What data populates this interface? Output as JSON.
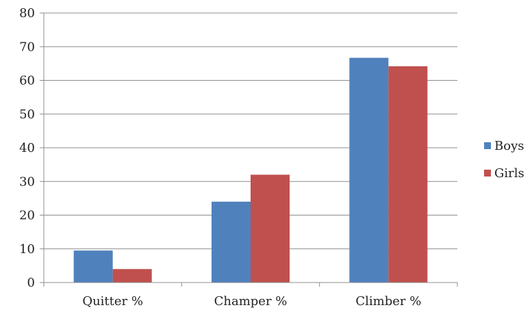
{
  "chart_data": {
    "type": "bar",
    "title": "",
    "xlabel": "",
    "ylabel": "",
    "categories": [
      "Quitter %",
      "Champer %",
      "Climber %"
    ],
    "series": [
      {
        "name": "Boys",
        "color": "#4f81bd",
        "values": [
          9.5,
          24,
          66.7
        ]
      },
      {
        "name": "Girls",
        "color": "#c0504d",
        "values": [
          4,
          32,
          64.2
        ]
      }
    ],
    "ylim": [
      0,
      80
    ],
    "yticks": [
      0,
      10,
      20,
      30,
      40,
      50,
      60,
      70,
      80
    ],
    "grid": true,
    "legend_position": "right"
  }
}
